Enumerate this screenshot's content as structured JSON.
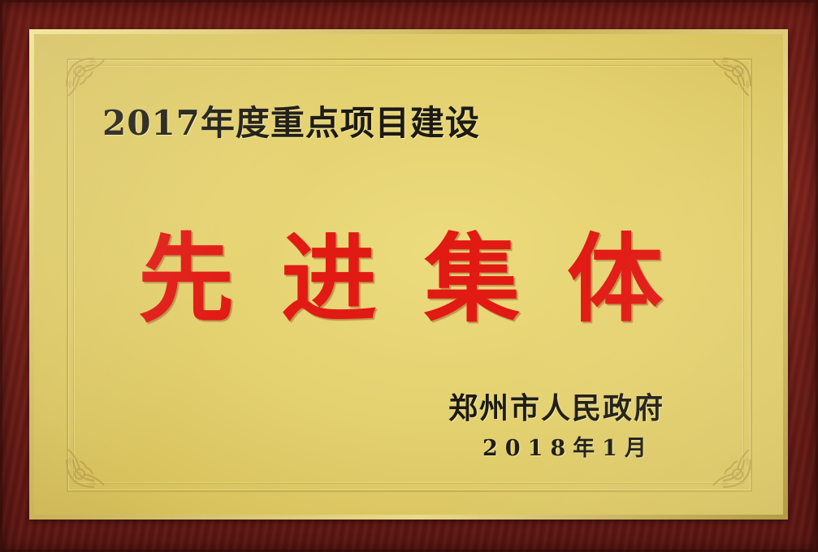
{
  "plaque": {
    "subtitle": "2017年度重点项目建设",
    "title": "先进集体",
    "issuer": "郑州市人民政府",
    "date": "2018年1月"
  },
  "colors": {
    "frame": "#6a1a14",
    "plate": "#e4d170",
    "title_text": "#e11a14",
    "body_text": "#1c1a12"
  },
  "decor": {
    "corner_ornament": "floral-corner-icon"
  }
}
